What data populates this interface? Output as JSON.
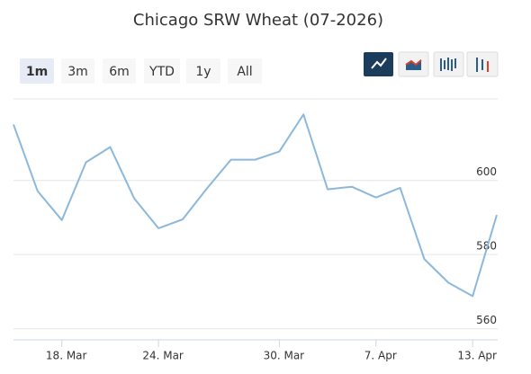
{
  "chart_data": {
    "type": "line",
    "title": "Chicago SRW Wheat (07-2026)",
    "range_selector": {
      "buttons": [
        "1m",
        "3m",
        "6m",
        "YTD",
        "1y",
        "All"
      ],
      "selected": 0
    },
    "categories": [
      null,
      null,
      "18. Mar",
      null,
      null,
      null,
      "24. Mar",
      null,
      null,
      null,
      null,
      "30. Mar",
      null,
      null,
      null,
      "7. Apr",
      null,
      null,
      null,
      "13. Apr",
      null
    ],
    "series": [
      {
        "color": "#8cb8dc",
        "values": [
          615.1,
          597.1,
          589.3,
          604.9,
          609.0,
          595.1,
          587.1,
          589.5,
          597.8,
          605.6,
          605.6,
          607.8,
          617.8,
          597.6,
          598.3,
          595.4,
          598.0,
          578.8,
          572.4,
          568.8,
          590.7
        ]
      }
    ],
    "ylim": [
      557,
      622
    ],
    "yticks": [
      560,
      580,
      600
    ],
    "grid": true
  }
}
